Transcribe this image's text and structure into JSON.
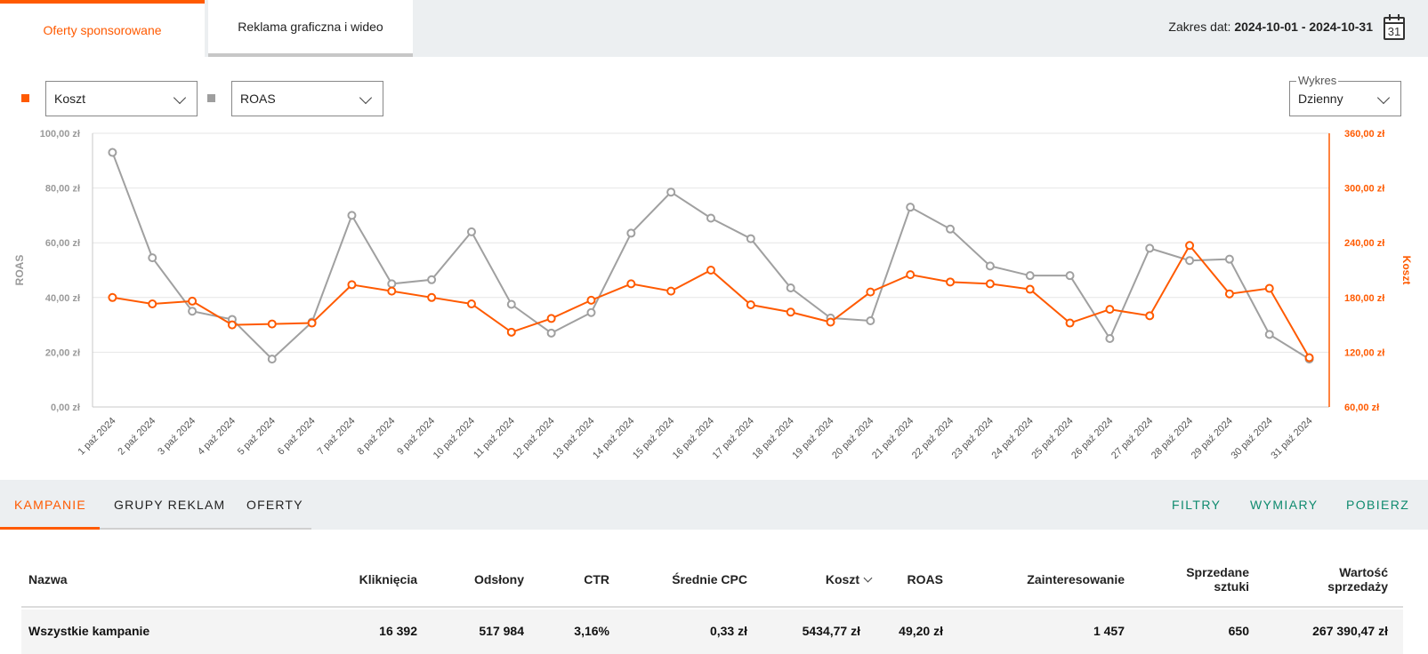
{
  "tabs": [
    {
      "label": "Oferty sponsorowane",
      "active": true
    },
    {
      "label": "Reklama graficzna i wideo",
      "active": false
    }
  ],
  "date_range": {
    "prefix": "Zakres dat:",
    "value": "2024-10-01 - 2024-10-31",
    "calendar_day": "31"
  },
  "selectors": {
    "left_metric": "Koszt",
    "right_metric": "ROAS",
    "chart_label": "Wykres",
    "chart_value": "Dzienny"
  },
  "colors": {
    "accent": "#ff5a00",
    "secondary": "#a0a0a0",
    "green": "#0e8a6e"
  },
  "chart_data": {
    "type": "line",
    "x": [
      "1 paź 2024",
      "2 paź 2024",
      "3 paź 2024",
      "4 paź 2024",
      "5 paź 2024",
      "6 paź 2024",
      "7 paź 2024",
      "8 paź 2024",
      "9 paź 2024",
      "10 paź 2024",
      "11 paź 2024",
      "12 paź 2024",
      "13 paź 2024",
      "14 paź 2024",
      "15 paź 2024",
      "16 paź 2024",
      "17 paź 2024",
      "18 paź 2024",
      "19 paź 2024",
      "20 paź 2024",
      "21 paź 2024",
      "22 paź 2024",
      "23 paź 2024",
      "24 paź 2024",
      "25 paź 2024",
      "26 paź 2024",
      "27 paź 2024",
      "28 paź 2024",
      "29 paź 2024",
      "30 paź 2024",
      "31 paź 2024"
    ],
    "series": [
      {
        "name": "ROAS",
        "axis": "left",
        "color": "#a0a0a0",
        "values": [
          93,
          54.5,
          35,
          32,
          17.5,
          31,
          70,
          45,
          46.5,
          64,
          37.5,
          27,
          34.5,
          63.5,
          78.5,
          69,
          61.5,
          43.5,
          32.5,
          31.5,
          73,
          65,
          51.5,
          48,
          48,
          25,
          58,
          53.5,
          54,
          26.5,
          17.5
        ]
      },
      {
        "name": "Koszt",
        "axis": "right",
        "color": "#ff5a00",
        "values": [
          180,
          173,
          176,
          150,
          151,
          152,
          194,
          187,
          180,
          173,
          142,
          157,
          177,
          195,
          187,
          210,
          172,
          164,
          153,
          186,
          205,
          197,
          195,
          189,
          152,
          167,
          160,
          237,
          184,
          190,
          114
        ]
      }
    ],
    "left_axis": {
      "label": "ROAS",
      "ylim": [
        0,
        100
      ],
      "ticks": [
        "100,00 zł",
        "80,00 zł",
        "60,00 zł",
        "40,00 zł",
        "20,00 zł",
        "0,00 zł"
      ]
    },
    "right_axis": {
      "label": "Koszt",
      "ylim": [
        60,
        360
      ],
      "ticks": [
        "360,00 zł",
        "300,00 zł",
        "240,00 zł",
        "180,00 zł",
        "120,00 zł",
        "60,00 zł"
      ]
    },
    "grid": true
  },
  "subtabs": [
    {
      "label": "KAMPANIE",
      "active": true
    },
    {
      "label": "GRUPY REKLAM",
      "active": false
    },
    {
      "label": "OFERTY",
      "active": false
    }
  ],
  "actions": [
    "FILTRY",
    "WYMIARY",
    "POBIERZ"
  ],
  "table": {
    "headers": {
      "name": "Nazwa",
      "clicks": "Kliknięcia",
      "views": "Odsłony",
      "ctr": "CTR",
      "cpc": "Średnie CPC",
      "cost": "Koszt",
      "roas": "ROAS",
      "interest": "Zainteresowanie",
      "sold_1": "Sprzedane",
      "sold_2": "sztuki",
      "value_1": "Wartość",
      "value_2": "sprzedaży"
    },
    "rows": [
      {
        "name": "Wszystkie kampanie",
        "clicks": "16 392",
        "views": "517 984",
        "ctr": "3,16%",
        "cpc": "0,33 zł",
        "cost": "5434,77 zł",
        "roas": "49,20 zł",
        "interest": "1 457",
        "sold": "650",
        "value": "267 390,47 zł"
      }
    ]
  }
}
